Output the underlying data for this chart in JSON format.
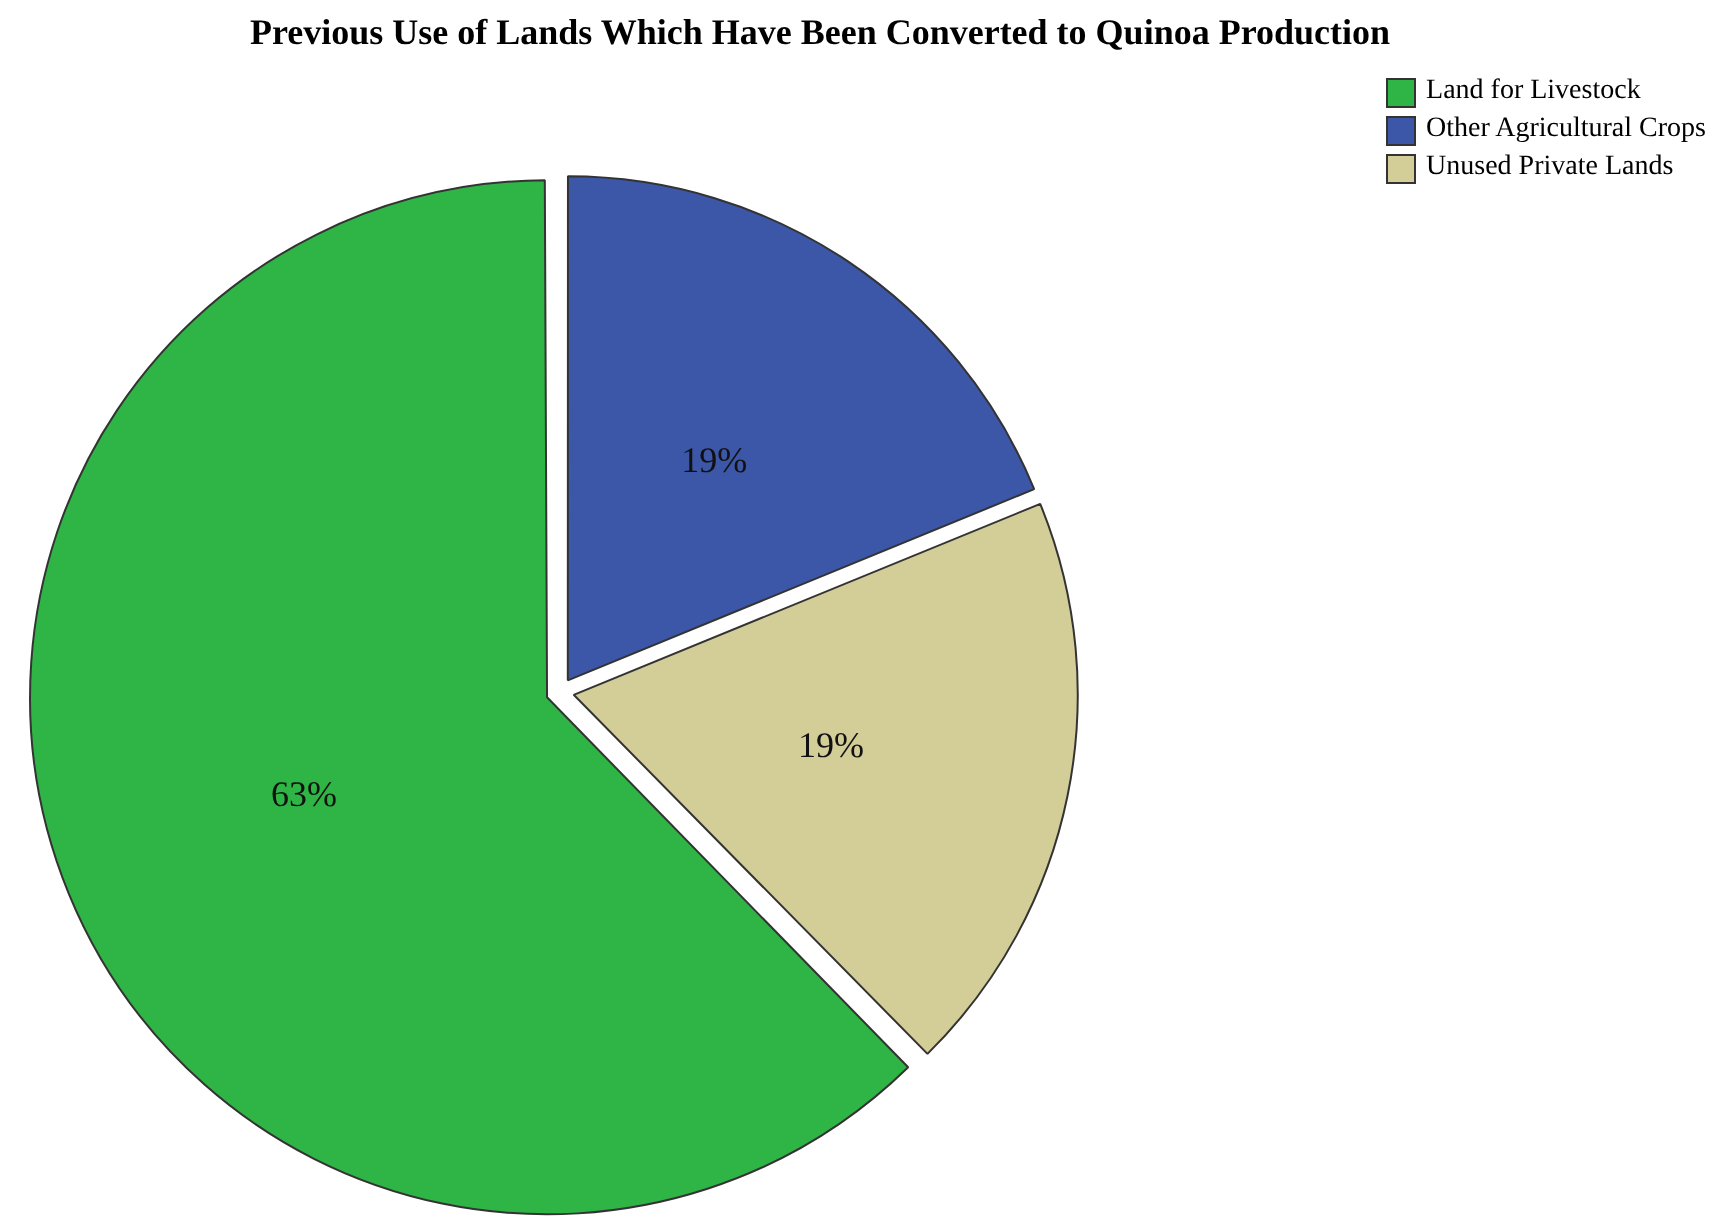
{
  "chart_data": {
    "type": "pie",
    "title": "Previous Use of Lands Which Have Been Converted to Quinoa Production",
    "categories": [
      "Land for Livestock",
      "Other Agricultural Crops",
      "Unused Private Lands"
    ],
    "values": [
      63,
      19,
      19
    ],
    "colors": [
      "#2fb545",
      "#3d57a8",
      "#d3ce98"
    ],
    "value_labels": [
      "63%",
      "19%",
      "19%"
    ],
    "legend": "top right"
  }
}
